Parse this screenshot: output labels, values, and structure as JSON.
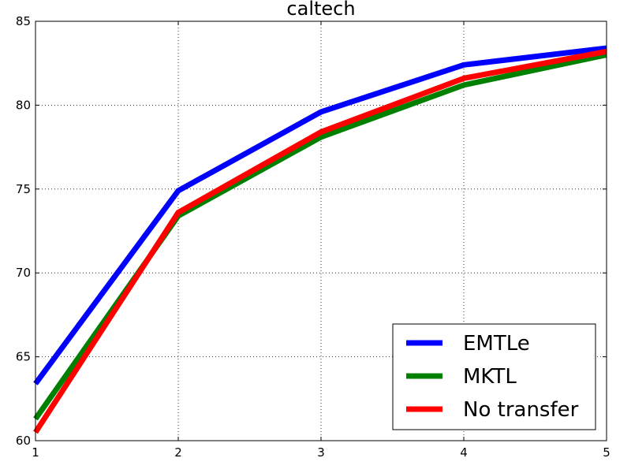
{
  "chart_data": {
    "type": "line",
    "title": "caltech",
    "xlabel": "",
    "ylabel": "",
    "x": [
      1,
      2,
      3,
      4,
      5
    ],
    "xlim": [
      1,
      5
    ],
    "ylim": [
      60,
      85
    ],
    "x_ticks": [
      "1",
      "2",
      "3",
      "4",
      "5"
    ],
    "y_ticks": [
      "60",
      "65",
      "70",
      "75",
      "80",
      "85"
    ],
    "grid": true,
    "legend_position": "bottom-right",
    "series": [
      {
        "name": "EMTLe",
        "color": "#0000ff",
        "values": [
          63.4,
          74.9,
          79.6,
          82.4,
          83.4
        ]
      },
      {
        "name": "MKTL",
        "color": "#008000",
        "values": [
          61.3,
          73.4,
          78.1,
          81.2,
          83.0
        ]
      },
      {
        "name": "No transfer",
        "color": "#ff0000",
        "values": [
          60.5,
          73.6,
          78.4,
          81.6,
          83.2
        ]
      }
    ]
  }
}
